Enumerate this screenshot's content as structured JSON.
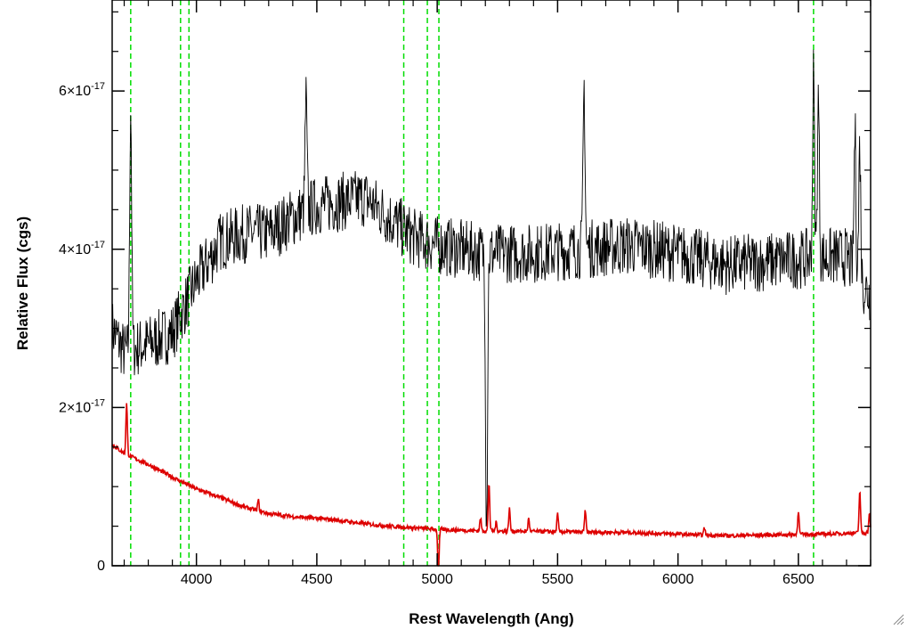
{
  "chart_data": {
    "type": "line",
    "title": "",
    "xlabel": "Rest Wavelength (Ang)",
    "ylabel": "Relative Flux (cgs)",
    "xlim": [
      3650,
      6800
    ],
    "ylim": [
      0,
      7.15e-17
    ],
    "x_ticks": [
      4000,
      4500,
      5000,
      5500,
      6000,
      6500
    ],
    "y_ticks": [
      {
        "value": 0,
        "label": "0",
        "mantissa": "",
        "exponent": ""
      },
      {
        "value": 2e-17,
        "label": "",
        "mantissa": "2×10",
        "exponent": "-17"
      },
      {
        "value": 4e-17,
        "label": "",
        "mantissa": "4×10",
        "exponent": "-17"
      },
      {
        "value": 6e-17,
        "label": "",
        "mantissa": "6×10",
        "exponent": "-17"
      }
    ],
    "grid": false,
    "reference_lines": {
      "orientation": "vertical",
      "style": "dashed",
      "color": "#00dd00",
      "x": [
        3727,
        3934,
        3969,
        4861,
        4959,
        5007,
        6563
      ]
    },
    "series": [
      {
        "color": "#000000",
        "style": "spectrum",
        "continuum": [
          [
            3650,
            3e-17
          ],
          [
            3700,
            2.7e-17
          ],
          [
            3800,
            2.8e-17
          ],
          [
            3900,
            2.95e-17
          ],
          [
            4000,
            3.6e-17
          ],
          [
            4100,
            4.1e-17
          ],
          [
            4200,
            4.2e-17
          ],
          [
            4300,
            4.2e-17
          ],
          [
            4400,
            4.4e-17
          ],
          [
            4500,
            4.55e-17
          ],
          [
            4600,
            4.6e-17
          ],
          [
            4700,
            4.65e-17
          ],
          [
            4800,
            4.4e-17
          ],
          [
            4900,
            4.15e-17
          ],
          [
            5000,
            4.05e-17
          ],
          [
            5200,
            3.95e-17
          ],
          [
            5400,
            3.95e-17
          ],
          [
            5600,
            4e-17
          ],
          [
            5800,
            4.05e-17
          ],
          [
            6000,
            3.95e-17
          ],
          [
            6200,
            3.8e-17
          ],
          [
            6400,
            3.85e-17
          ],
          [
            6600,
            3.9e-17
          ],
          [
            6700,
            3.9e-17
          ],
          [
            6800,
            3.4e-17
          ]
        ],
        "noise_amplitude": 3.8e-18,
        "features": [
          [
            3727,
            5.85e-17
          ],
          [
            4455,
            5.9e-17
          ],
          [
            5205,
            5e-18
          ],
          [
            5610,
            6.05e-17
          ],
          [
            6563,
            6.2e-17
          ],
          [
            6583,
            5.9e-17
          ],
          [
            6735,
            5.5e-17
          ],
          [
            6755,
            5.3e-17
          ]
        ]
      },
      {
        "color": "#dd0000",
        "style": "error",
        "continuum": [
          [
            3650,
            1.53e-17
          ],
          [
            3700,
            1.42e-17
          ],
          [
            3800,
            1.28e-17
          ],
          [
            3900,
            1.12e-17
          ],
          [
            4000,
            9.7e-18
          ],
          [
            4100,
            8.6e-18
          ],
          [
            4200,
            7.4e-18
          ],
          [
            4300,
            6.6e-18
          ],
          [
            4400,
            6.2e-18
          ],
          [
            4500,
            6e-18
          ],
          [
            4600,
            5.7e-18
          ],
          [
            4700,
            5.3e-18
          ],
          [
            4800,
            5e-18
          ],
          [
            5000,
            4.6e-18
          ],
          [
            5200,
            4.4e-18
          ],
          [
            5500,
            4.3e-18
          ],
          [
            5800,
            4.2e-18
          ],
          [
            6000,
            4e-18
          ],
          [
            6200,
            3.8e-18
          ],
          [
            6400,
            3.9e-18
          ],
          [
            6600,
            4e-18
          ],
          [
            6800,
            4.2e-18
          ]
        ],
        "noise_amplitude": 2.5e-19,
        "features": [
          [
            3710,
            2.05e-17
          ],
          [
            4257,
            8.3e-18
          ],
          [
            5005,
            -1e-18
          ],
          [
            5180,
            6e-18
          ],
          [
            5215,
            1.05e-17
          ],
          [
            5245,
            5.5e-18
          ],
          [
            5300,
            7.2e-18
          ],
          [
            5380,
            6e-18
          ],
          [
            5500,
            6.5e-18
          ],
          [
            5615,
            7e-18
          ],
          [
            6110,
            4.8e-18
          ],
          [
            6500,
            7e-18
          ],
          [
            6755,
            9.5e-18
          ],
          [
            6795,
            6.5e-18
          ]
        ]
      }
    ]
  }
}
